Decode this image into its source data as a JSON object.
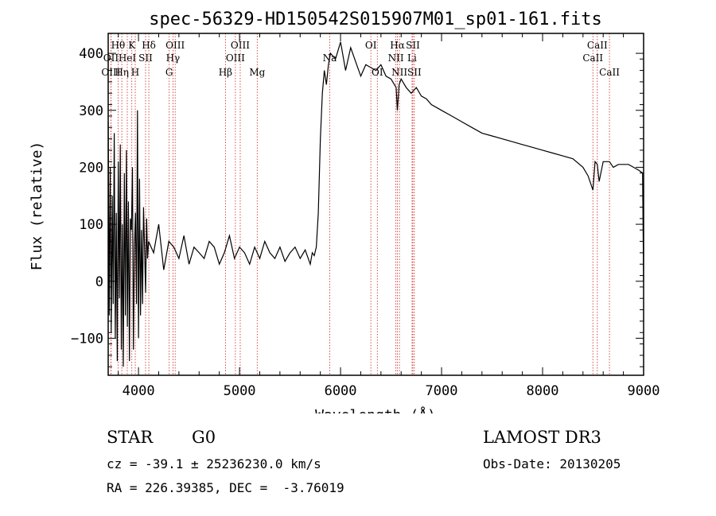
{
  "chart_data": {
    "type": "line",
    "title": "spec-56329-HD150542S015907M01_sp01-161.fits",
    "xlabel": "Wavelength (Å)",
    "ylabel": "Flux (relative)",
    "xlim": [
      3700,
      9000
    ],
    "ylim": [
      -165,
      435
    ],
    "x_ticks": [
      4000,
      5000,
      6000,
      7000,
      8000,
      9000
    ],
    "y_ticks": [
      -100,
      0,
      100,
      200,
      300,
      400
    ],
    "series": [
      {
        "name": "spectrum",
        "x": [
          3700,
          3710,
          3720,
          3730,
          3740,
          3750,
          3760,
          3770,
          3780,
          3790,
          3800,
          3810,
          3820,
          3830,
          3840,
          3850,
          3860,
          3870,
          3880,
          3890,
          3900,
          3910,
          3920,
          3930,
          3940,
          3950,
          3960,
          3970,
          3980,
          3990,
          4000,
          4010,
          4020,
          4030,
          4040,
          4050,
          4060,
          4070,
          4080,
          4090,
          4100,
          4150,
          4200,
          4250,
          4300,
          4350,
          4400,
          4450,
          4500,
          4550,
          4600,
          4650,
          4700,
          4750,
          4800,
          4850,
          4900,
          4950,
          5000,
          5050,
          5100,
          5150,
          5200,
          5250,
          5300,
          5350,
          5400,
          5450,
          5500,
          5550,
          5600,
          5650,
          5700,
          5720,
          5740,
          5760,
          5780,
          5800,
          5820,
          5840,
          5860,
          5880,
          5900,
          5950,
          6000,
          6050,
          6100,
          6150,
          6200,
          6250,
          6300,
          6350,
          6400,
          6450,
          6500,
          6550,
          6563,
          6580,
          6600,
          6650,
          6700,
          6750,
          6800,
          6850,
          6900,
          6950,
          7000,
          7100,
          7200,
          7300,
          7400,
          7500,
          7600,
          7700,
          7800,
          7900,
          8000,
          8100,
          8200,
          8300,
          8400,
          8450,
          8498,
          8520,
          8542,
          8560,
          8600,
          8662,
          8700,
          8750,
          8800,
          8850,
          8900,
          8950,
          8990,
          9000
        ],
        "y": [
          280,
          -60,
          200,
          -90,
          150,
          -40,
          260,
          -100,
          120,
          -140,
          210,
          -30,
          240,
          -120,
          100,
          -150,
          190,
          -60,
          230,
          -80,
          140,
          -140,
          110,
          90,
          200,
          -120,
          60,
          120,
          -40,
          300,
          -100,
          180,
          -60,
          90,
          -40,
          130,
          60,
          -20,
          110,
          40,
          70,
          50,
          100,
          20,
          70,
          60,
          40,
          80,
          30,
          60,
          50,
          40,
          70,
          60,
          30,
          50,
          80,
          40,
          60,
          50,
          30,
          60,
          40,
          70,
          50,
          40,
          60,
          35,
          50,
          60,
          40,
          55,
          30,
          50,
          45,
          60,
          120,
          250,
          330,
          370,
          345,
          380,
          400,
          390,
          420,
          370,
          410,
          385,
          360,
          380,
          375,
          370,
          380,
          360,
          355,
          340,
          300,
          345,
          355,
          340,
          330,
          340,
          325,
          320,
          310,
          305,
          300,
          290,
          280,
          270,
          260,
          255,
          250,
          245,
          240,
          235,
          230,
          225,
          220,
          215,
          200,
          185,
          160,
          210,
          205,
          175,
          210,
          210,
          200,
          205,
          205,
          205,
          200,
          195,
          190,
          0
        ]
      }
    ],
    "spectral_lines": [
      {
        "label": "Hθ",
        "x": 3798,
        "row": 1
      },
      {
        "label": "OII",
        "x": 3727,
        "row": 2
      },
      {
        "label": "OIII",
        "x": 3727,
        "row": 3
      },
      {
        "label": "Hη",
        "x": 3835,
        "row": 3
      },
      {
        "label": "HeI",
        "x": 3889,
        "row": 2
      },
      {
        "label": "K",
        "x": 3934,
        "row": 1
      },
      {
        "label": "H",
        "x": 3968,
        "row": 3
      },
      {
        "label": "SII",
        "x": 4070,
        "row": 2
      },
      {
        "label": "Hδ",
        "x": 4102,
        "row": 1
      },
      {
        "label": "OIII",
        "x": 4363,
        "row": 1
      },
      {
        "label": "Hγ",
        "x": 4341,
        "row": 2
      },
      {
        "label": "G",
        "x": 4304,
        "row": 3
      },
      {
        "label": "Hβ",
        "x": 4861,
        "row": 3
      },
      {
        "label": "OIII",
        "x": 5007,
        "row": 1
      },
      {
        "label": "OIII",
        "x": 4959,
        "row": 2
      },
      {
        "label": "Mg",
        "x": 5175,
        "row": 3
      },
      {
        "label": "Na",
        "x": 5893,
        "row": 2
      },
      {
        "label": "OI",
        "x": 6300,
        "row": 1
      },
      {
        "label": "OI",
        "x": 6364,
        "row": 3
      },
      {
        "label": "Hα",
        "x": 6563,
        "row": 1
      },
      {
        "label": "NII",
        "x": 6548,
        "row": 2
      },
      {
        "label": "NII",
        "x": 6583,
        "row": 3
      },
      {
        "label": "SII",
        "x": 6716,
        "row": 1
      },
      {
        "label": "Li",
        "x": 6708,
        "row": 2
      },
      {
        "label": "SII",
        "x": 6731,
        "row": 3
      },
      {
        "label": "CaII",
        "x": 8542,
        "row": 1
      },
      {
        "label": "CaII",
        "x": 8498,
        "row": 2
      },
      {
        "label": "CaII",
        "x": 8662,
        "row": 3
      }
    ],
    "line_color": "#000000",
    "marker_color": "#d02020"
  },
  "info": {
    "object_class": "STAR",
    "subclass": "G0",
    "survey": "LAMOST DR3",
    "redshift": "cz = -39.1 ± 25236230.0 km/s",
    "obs_date": "Obs-Date: 20130205",
    "coords": "RA = 226.39385, DEC =  -3.76019"
  }
}
